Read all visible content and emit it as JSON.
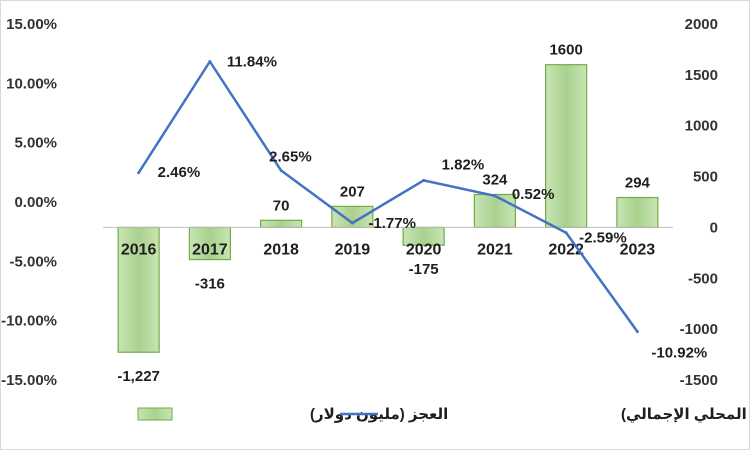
{
  "chart_data": {
    "type": "bar+line",
    "categories": [
      "2016",
      "2017",
      "2018",
      "2019",
      "2020",
      "2021",
      "2022",
      "2023"
    ],
    "series": [
      {
        "name": "العجز (مليون دولار)",
        "type": "bar",
        "axis": "right",
        "values": [
          -1227,
          -316,
          70,
          207,
          -175,
          324,
          1600,
          294
        ],
        "labels": [
          "-1,227",
          "-316",
          "70",
          "207",
          "-175",
          "324",
          "1600",
          "294"
        ],
        "color": "#a9d18e"
      },
      {
        "name": "العجز (% من الناتج المحلي الإجمالي)",
        "type": "line",
        "axis": "left",
        "values": [
          2.46,
          11.84,
          2.65,
          -1.77,
          1.82,
          0.52,
          -2.59,
          -10.92
        ],
        "labels": [
          "2.46%",
          "11.84%",
          "2.65%",
          "-1.77%",
          "1.82%",
          "0.52%",
          "-2.59%",
          "-10.92%"
        ],
        "color": "#4472c4"
      }
    ],
    "y_left": {
      "ylim": [
        -15,
        15
      ],
      "ticks": [
        "15.00%",
        "10.00%",
        "5.00%",
        "0.00%",
        "-5.00%",
        "-10.00%",
        "-15.00%"
      ]
    },
    "y_right": {
      "ylim": [
        -1500,
        2000
      ],
      "ticks": [
        "2000",
        "1500",
        "1000",
        "500",
        "0",
        "-500",
        "-1000",
        "-1500"
      ]
    },
    "legend_placement": "bottom",
    "grid": false,
    "bar_edge_color": "#70ad47"
  }
}
